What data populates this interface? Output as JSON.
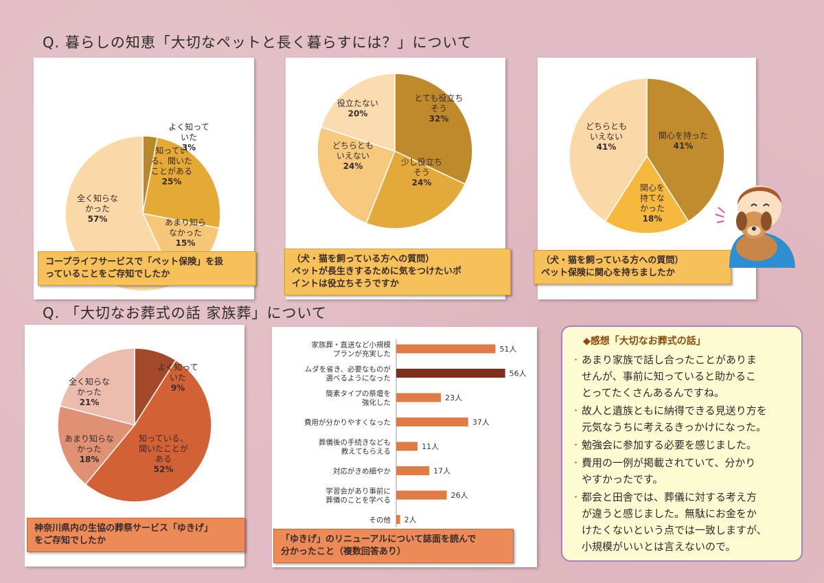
{
  "section1_title": "Q.  暮らしの知恵「大切なペットと長く暮らすには？」について",
  "section2_title": "Q. 「大切なお葬式の話  家族葬」について",
  "chart_data": [
    {
      "type": "pie",
      "caption": [
        "コープライフサービスで「ペット保険」を扱",
        "っていることをご存知でしたか"
      ],
      "slices": [
        {
          "label": [
            "よく知って",
            "いた"
          ],
          "pct": "3%",
          "value": 3,
          "color": "#b5892c"
        },
        {
          "label": [
            "知ってい",
            "る、聞いた",
            "ことがある"
          ],
          "pct": "25%",
          "value": 25,
          "color": "#e4aa35"
        },
        {
          "label": [
            "あまり知ら",
            "なかった"
          ],
          "pct": "15%",
          "value": 15,
          "color": "#f6c679"
        },
        {
          "label": [
            "全く知らな",
            "かった"
          ],
          "pct": "57%",
          "value": 57,
          "color": "#fbd8a8"
        }
      ]
    },
    {
      "type": "pie",
      "caption": [
        "（犬・猫を飼っている方への質問）",
        "ペットが長生きするために気をつけたいポ",
        "イントは役立ちそうですか"
      ],
      "slices": [
        {
          "label": [
            "とても役立ち",
            "そう"
          ],
          "pct": "32%",
          "value": 32,
          "color": "#bf8a2c"
        },
        {
          "label": [
            "少し役立ち",
            "そう"
          ],
          "pct": "24%",
          "value": 24,
          "color": "#e3a93b"
        },
        {
          "label": [
            "どちらとも",
            "いえない"
          ],
          "pct": "24%",
          "value": 24,
          "color": "#f6c97e"
        },
        {
          "label": [
            "役立たない"
          ],
          "pct": "20%",
          "value": 20,
          "color": "#fbdcb0"
        }
      ]
    },
    {
      "type": "pie",
      "caption": [
        "（犬・猫を飼っている方への質問）",
        "ペット保険に関心を持ちましたか"
      ],
      "slices": [
        {
          "label": [
            "関心を持った"
          ],
          "pct": "41%",
          "value": 41,
          "color": "#c18c2e"
        },
        {
          "label": [
            "関心を",
            "持てな",
            "かった"
          ],
          "pct": "18%",
          "value": 18,
          "color": "#f6b93e"
        },
        {
          "label": [
            "どちらとも",
            "いえない"
          ],
          "pct": "41%",
          "value": 41,
          "color": "#fbd8a8"
        }
      ]
    },
    {
      "type": "pie",
      "caption": [
        "神奈川県内の生協の葬祭サービス「ゆきげ」",
        "をご存知でしたか"
      ],
      "slices": [
        {
          "label": [
            "よく知って",
            "いた"
          ],
          "pct": "9%",
          "value": 9,
          "color": "#a4482a"
        },
        {
          "label": [
            "知っている、",
            "聞いたことが",
            "ある"
          ],
          "pct": "52%",
          "value": 52,
          "color": "#d26236"
        },
        {
          "label": [
            "あまり知らな",
            "かった"
          ],
          "pct": "18%",
          "value": 18,
          "color": "#e09073"
        },
        {
          "label": [
            "全く知らな",
            "かった"
          ],
          "pct": "21%",
          "value": 21,
          "color": "#ecbcae"
        }
      ]
    },
    {
      "type": "bar",
      "orientation": "horizontal",
      "caption": [
        "「ゆきげ」のリニューアルについて誌面を読んで",
        "分かったこと（複数回答あり）"
      ],
      "unit": "人",
      "xlim": [
        0,
        60
      ],
      "bars": [
        {
          "label": [
            "家族葬・直送など小規模",
            "プランが充実した"
          ],
          "value": 51,
          "display": "51人",
          "color": "#e07b45"
        },
        {
          "label": [
            "ムダを省き、必要なものが",
            "選べるようになった"
          ],
          "value": 56,
          "display": "56人",
          "color": "#7e2e1c"
        },
        {
          "label": [
            "簡素タイプの祭壇を",
            "強化した"
          ],
          "value": 23,
          "display": "23人",
          "color": "#e07b45"
        },
        {
          "label": [
            "費用が分かりやすくなった"
          ],
          "value": 37,
          "display": "37人",
          "color": "#e07b45"
        },
        {
          "label": [
            "葬儀後の手続きなども",
            "教えてもらえる"
          ],
          "value": 11,
          "display": "11人",
          "color": "#e07b45"
        },
        {
          "label": [
            "対応がきめ細やか"
          ],
          "value": 17,
          "display": "17人",
          "color": "#e07b45"
        },
        {
          "label": [
            "学習会があり事前に",
            "葬儀のことを学べる"
          ],
          "value": 26,
          "display": "26人",
          "color": "#e07b45"
        },
        {
          "label": [
            "その他"
          ],
          "value": 2,
          "display": "2人",
          "color": "#e07b45"
        }
      ]
    }
  ],
  "comments": {
    "title": "◆感想「大切なお葬式の話」",
    "bullet": "・",
    "items": [
      [
        "あまり家族で話し合ったことがありま",
        "せんが、事前に知っていると助かるこ",
        "とってたくさんあるんですね。"
      ],
      [
        "故人と遺族ともに納得できる見送り方を",
        "元気なうちに考えるきっかけになった。"
      ],
      [
        "勉強会に参加する必要を感じました。"
      ],
      [
        "費用の一例が掲載されていて、分かり",
        "やすかったです。"
      ],
      [
        "都会と田舎では、葬儀に対する考え方",
        "が違うと感じました。無駄にお金をか",
        "けたくないという点では一致しますが、",
        "小規模がいいとは言えないので。"
      ]
    ]
  }
}
